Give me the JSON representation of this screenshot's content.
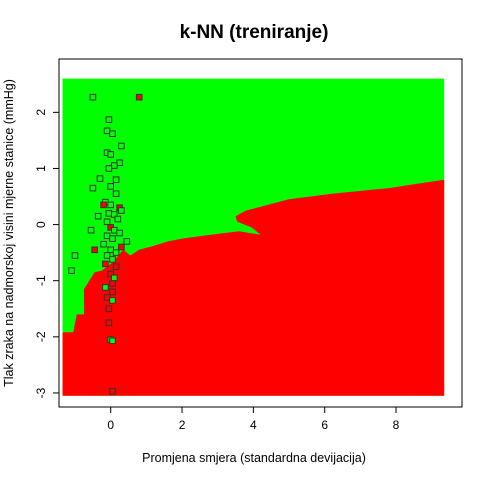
{
  "chart_data": {
    "type": "scatter",
    "title": "k-NN (treniranje)",
    "xlabel": "Promjena smjera (standardna devijacija)",
    "ylabel": "Tlak zraka na nadmorskoj visini mjerne stanice (mmHg)",
    "xlim": [
      -1.45,
      9.85
    ],
    "ylim": [
      -3.25,
      2.95
    ],
    "xticks": [
      "0",
      "2",
      "4",
      "6",
      "8"
    ],
    "xtick_values": [
      0,
      2,
      4,
      6,
      8
    ],
    "yticks": [
      "-3",
      "-2",
      "-1",
      "0",
      "1",
      "2"
    ],
    "ytick_values": [
      -3,
      -2,
      -1,
      0,
      1,
      2
    ],
    "grid": false,
    "colors": {
      "class_a": "#00ff00",
      "class_b": "#ff0000",
      "point_edge": "#333333"
    },
    "region": {
      "x_range": [
        -1.35,
        9.35
      ],
      "y_range": [
        -3.05,
        2.6
      ],
      "background_class": "class_a",
      "class_b_boundary": [
        [
          -1.35,
          -1.92
        ],
        [
          -1.05,
          -1.92
        ],
        [
          -0.95,
          -1.6
        ],
        [
          -0.75,
          -1.6
        ],
        [
          -0.75,
          -1.15
        ],
        [
          -0.55,
          -0.95
        ],
        [
          -0.45,
          -0.85
        ],
        [
          -0.25,
          -0.82
        ],
        [
          0.0,
          -0.7
        ],
        [
          0.15,
          -0.6
        ],
        [
          0.35,
          -0.45
        ],
        [
          0.55,
          -0.55
        ],
        [
          0.8,
          -0.45
        ],
        [
          1.2,
          -0.38
        ],
        [
          1.6,
          -0.3
        ],
        [
          2.0,
          -0.25
        ],
        [
          2.6,
          -0.2
        ],
        [
          3.2,
          -0.15
        ],
        [
          3.6,
          -0.12
        ],
        [
          4.2,
          -0.18
        ],
        [
          3.95,
          -0.05
        ],
        [
          3.55,
          0.05
        ],
        [
          3.5,
          0.15
        ],
        [
          3.8,
          0.25
        ],
        [
          4.4,
          0.35
        ],
        [
          5.0,
          0.45
        ],
        [
          5.6,
          0.5
        ],
        [
          6.2,
          0.55
        ],
        [
          7.0,
          0.6
        ],
        [
          7.8,
          0.65
        ],
        [
          8.5,
          0.72
        ],
        [
          9.35,
          0.8
        ],
        [
          9.35,
          -3.05
        ],
        [
          -1.35,
          -3.05
        ],
        [
          -1.35,
          -1.92
        ]
      ],
      "class_a_notch": [
        [
          -1.35,
          -1.32
        ],
        [
          -1.05,
          -1.38
        ],
        [
          -1.35,
          -1.42
        ]
      ]
    },
    "points": [
      {
        "x": -0.5,
        "y": 2.27,
        "class": "class_a"
      },
      {
        "x": 0.8,
        "y": 2.27,
        "class": "class_b"
      },
      {
        "x": -0.05,
        "y": 1.87,
        "class": "class_a"
      },
      {
        "x": -0.1,
        "y": 1.67,
        "class": "class_a"
      },
      {
        "x": 0.05,
        "y": 1.62,
        "class": "class_a"
      },
      {
        "x": 0.3,
        "y": 1.4,
        "class": "class_a"
      },
      {
        "x": -0.1,
        "y": 1.28,
        "class": "class_a"
      },
      {
        "x": 0.0,
        "y": 1.25,
        "class": "class_a"
      },
      {
        "x": 0.25,
        "y": 1.1,
        "class": "class_a"
      },
      {
        "x": 0.1,
        "y": 1.05,
        "class": "class_a"
      },
      {
        "x": -0.05,
        "y": 1.0,
        "class": "class_a"
      },
      {
        "x": 0.15,
        "y": 0.8,
        "class": "class_a"
      },
      {
        "x": -0.3,
        "y": 0.82,
        "class": "class_a"
      },
      {
        "x": -0.5,
        "y": 0.65,
        "class": "class_a"
      },
      {
        "x": 0.0,
        "y": 0.68,
        "class": "class_a"
      },
      {
        "x": 0.15,
        "y": 0.55,
        "class": "class_a"
      },
      {
        "x": -0.15,
        "y": 0.4,
        "class": "class_a"
      },
      {
        "x": 0.0,
        "y": 0.35,
        "class": "class_a"
      },
      {
        "x": -0.2,
        "y": 0.35,
        "class": "class_b"
      },
      {
        "x": 0.25,
        "y": 0.3,
        "class": "class_b"
      },
      {
        "x": 0.3,
        "y": 0.25,
        "class": "class_a"
      },
      {
        "x": -0.05,
        "y": 0.2,
        "class": "class_a"
      },
      {
        "x": 0.1,
        "y": 0.18,
        "class": "class_a"
      },
      {
        "x": -0.35,
        "y": 0.15,
        "class": "class_a"
      },
      {
        "x": 0.2,
        "y": 0.1,
        "class": "class_a"
      },
      {
        "x": -0.1,
        "y": 0.05,
        "class": "class_a"
      },
      {
        "x": 0.0,
        "y": -0.05,
        "class": "class_b"
      },
      {
        "x": 0.1,
        "y": -0.1,
        "class": "class_a"
      },
      {
        "x": -0.55,
        "y": -0.1,
        "class": "class_a"
      },
      {
        "x": 0.25,
        "y": -0.15,
        "class": "class_a"
      },
      {
        "x": -0.1,
        "y": -0.2,
        "class": "class_a"
      },
      {
        "x": 0.05,
        "y": -0.25,
        "class": "class_a"
      },
      {
        "x": 0.45,
        "y": -0.3,
        "class": "class_a"
      },
      {
        "x": -0.2,
        "y": -0.35,
        "class": "class_a"
      },
      {
        "x": 0.3,
        "y": -0.4,
        "class": "class_b"
      },
      {
        "x": 0.0,
        "y": -0.45,
        "class": "class_a"
      },
      {
        "x": -0.45,
        "y": -0.45,
        "class": "class_b"
      },
      {
        "x": 0.15,
        "y": -0.5,
        "class": "class_a"
      },
      {
        "x": -0.1,
        "y": -0.55,
        "class": "class_a"
      },
      {
        "x": -1.0,
        "y": -0.55,
        "class": "class_a"
      },
      {
        "x": 0.05,
        "y": -0.62,
        "class": "class_a"
      },
      {
        "x": -0.15,
        "y": -0.7,
        "class": "class_b"
      },
      {
        "x": 0.15,
        "y": -0.75,
        "class": "class_b"
      },
      {
        "x": -1.1,
        "y": -0.82,
        "class": "class_a"
      },
      {
        "x": 0.0,
        "y": -0.88,
        "class": "class_b"
      },
      {
        "x": 0.1,
        "y": -0.95,
        "class": "class_a"
      },
      {
        "x": 0.05,
        "y": -1.05,
        "class": "class_b"
      },
      {
        "x": -0.15,
        "y": -1.12,
        "class": "class_a"
      },
      {
        "x": 0.05,
        "y": -1.2,
        "class": "class_b"
      },
      {
        "x": -0.1,
        "y": -1.3,
        "class": "class_b"
      },
      {
        "x": 0.05,
        "y": -1.35,
        "class": "class_a"
      },
      {
        "x": -0.05,
        "y": -1.5,
        "class": "class_b"
      },
      {
        "x": -0.05,
        "y": -1.75,
        "class": "class_b"
      },
      {
        "x": 0.0,
        "y": -2.05,
        "class": "class_a"
      },
      {
        "x": 0.05,
        "y": -2.07,
        "class": "class_a"
      },
      {
        "x": 0.05,
        "y": -2.97,
        "class": "class_b"
      }
    ]
  }
}
